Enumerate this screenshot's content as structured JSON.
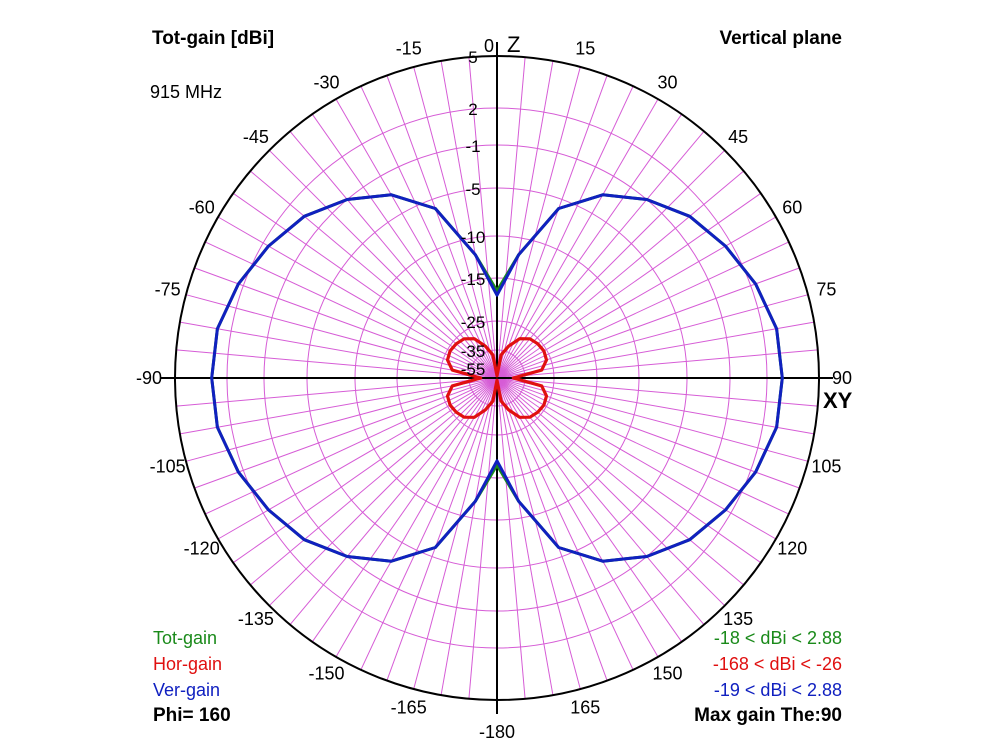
{
  "header": {
    "title_left": "Tot-gain [dBi]",
    "title_right": "Vertical plane",
    "frequency": "915 MHz"
  },
  "footer": {
    "phi": "Phi= 160",
    "max_gain": "Max gain The:90"
  },
  "legend": [
    {
      "name": "Tot-gain",
      "range": "-18 < dBi < 2.88",
      "color": "#1a8a1a"
    },
    {
      "name": "Hor-gain",
      "range": "-168 < dBi < -26",
      "color": "#e01010"
    },
    {
      "name": "Ver-gain",
      "range": "-19 < dBi < 2.88",
      "color": "#1020c0"
    }
  ],
  "chart_data": {
    "type": "line",
    "projection": "polar",
    "angle_unit": "degrees",
    "radial_unit": "dBi",
    "angle_labels": [
      "0",
      "15",
      "30",
      "45",
      "60",
      "75",
      "90",
      "105",
      "120",
      "135",
      "150",
      "165",
      "-180",
      "-165",
      "-150",
      "-135",
      "-120",
      "-105",
      "-90",
      "-75",
      "-60",
      "-45",
      "-30",
      "-15"
    ],
    "axis_labels": {
      "top": "Z",
      "right": "XY"
    },
    "radial_tick_labels": [
      "5",
      "2",
      "-1",
      "-5",
      "-10",
      "-15",
      "-25",
      "-35",
      "-55"
    ],
    "grid": true,
    "series": [
      {
        "name": "Tot-gain",
        "theta": [
          0,
          10,
          20,
          30,
          40,
          50,
          60,
          70,
          80,
          90,
          100,
          110,
          120,
          130,
          140,
          150,
          160,
          170,
          180
        ],
        "values": [
          -18,
          -12,
          -6,
          -3,
          -1,
          0.5,
          1.5,
          2.3,
          2.8,
          2.88,
          2.8,
          2.3,
          1.5,
          0.5,
          -1,
          -3,
          -6,
          -12,
          -18
        ]
      },
      {
        "name": "Hor-gain",
        "theta": [
          0,
          10,
          20,
          30,
          40,
          50,
          60,
          70,
          80,
          90,
          100,
          110,
          120,
          130,
          140,
          150,
          160,
          170,
          180
        ],
        "values": [
          -168,
          -40,
          -33,
          -29,
          -27,
          -26.3,
          -26,
          -26.5,
          -29,
          -48,
          -29,
          -26.5,
          -26,
          -26.3,
          -27,
          -29,
          -33,
          -40,
          -168
        ]
      },
      {
        "name": "Ver-gain",
        "theta": [
          0,
          10,
          20,
          30,
          40,
          50,
          60,
          70,
          80,
          90,
          100,
          110,
          120,
          130,
          140,
          150,
          160,
          170,
          180
        ],
        "values": [
          -19,
          -12,
          -6,
          -3,
          -1,
          0.5,
          1.5,
          2.3,
          2.8,
          2.88,
          2.8,
          2.3,
          1.5,
          0.5,
          -1,
          -3,
          -6,
          -12,
          -19
        ]
      }
    ]
  }
}
